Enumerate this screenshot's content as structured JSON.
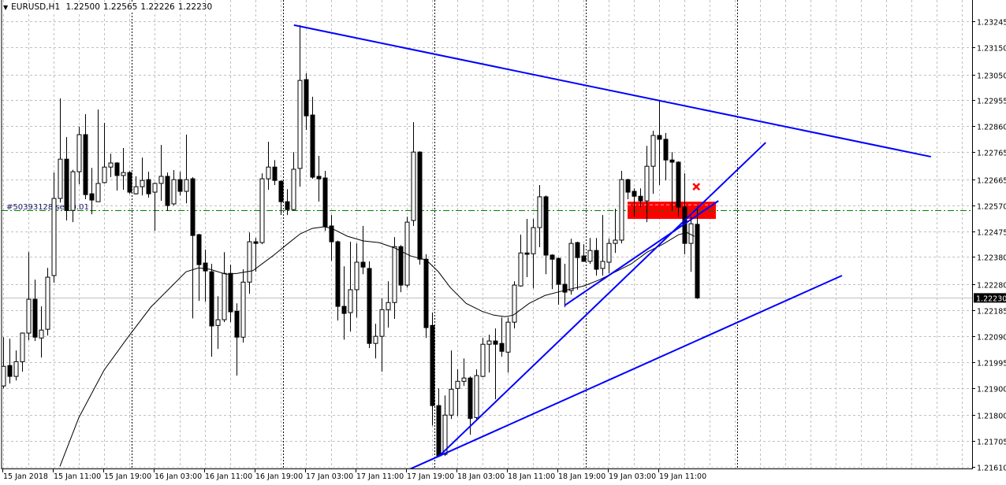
{
  "header": {
    "menu_icon": "triangle-down-icon",
    "symbol_timeframe": "EURUSD,H1",
    "open": "1.22500",
    "high": "1.22565",
    "low": "1.22226",
    "close": "1.22230"
  },
  "order_label": "#50393128 sell 0.01",
  "colors": {
    "background": "#ffffff",
    "grid": "#c0c0c0",
    "candle_bull_fill": "#ffffff",
    "candle_bear_fill": "#000000",
    "candle_outline": "#000000",
    "trendline": "#0000ff",
    "order_line": "#008000",
    "zone": "#ff0000",
    "bid_line": "#c0c0c0",
    "moving_average": "#000000"
  },
  "chart_data": {
    "type": "candlestick",
    "symbol": "EURUSD",
    "timeframe": "H1",
    "grid": true,
    "x_tick_labels": [
      "15 Jan 2018",
      "15 Jan 11:00",
      "15 Jan 19:00",
      "16 Jan 03:00",
      "16 Jan 11:00",
      "16 Jan 19:00",
      "17 Jan 03:00",
      "17 Jan 11:00",
      "17 Jan 19:00",
      "18 Jan 03:00",
      "18 Jan 11:00",
      "18 Jan 19:00",
      "19 Jan 03:00",
      "19 Jan 11:00"
    ],
    "y_tick_labels": [
      "1.23245",
      "1.23150",
      "1.23050",
      "1.22955",
      "1.22860",
      "1.22765",
      "1.22665",
      "1.22570",
      "1.22475",
      "1.22380",
      "1.22280",
      "1.22185",
      "1.22090",
      "1.21995",
      "1.21900",
      "1.21800",
      "1.21705",
      "1.21610"
    ],
    "ylim": [
      1.2161,
      1.23245
    ],
    "current_price": "1.22230",
    "order_price": 1.22553,
    "candles_ohlc": [
      [
        1.21907,
        1.22086,
        1.21898,
        1.21979
      ],
      [
        1.21982,
        1.2208,
        1.21916,
        1.21942
      ],
      [
        1.21942,
        1.22037,
        1.21927,
        1.21996
      ],
      [
        1.21996,
        1.22103,
        1.21959,
        1.22101
      ],
      [
        1.22101,
        1.22398,
        1.22075,
        1.22225
      ],
      [
        1.22225,
        1.22297,
        1.22072,
        1.22086
      ],
      [
        1.22083,
        1.22199,
        1.22011,
        1.22112
      ],
      [
        1.22115,
        1.2234,
        1.22092,
        1.22306
      ],
      [
        1.22312,
        1.2269,
        1.22286,
        1.22595
      ],
      [
        1.22595,
        1.22962,
        1.2258,
        1.22739
      ],
      [
        1.22739,
        1.2282,
        1.22514,
        1.22551
      ],
      [
        1.22551,
        1.227,
        1.22508,
        1.22693
      ],
      [
        1.22693,
        1.22858,
        1.22647,
        1.22829
      ],
      [
        1.22829,
        1.22904,
        1.22592,
        1.22609
      ],
      [
        1.22612,
        1.22707,
        1.22537,
        1.22589
      ],
      [
        1.22583,
        1.22921,
        1.22583,
        1.2265
      ],
      [
        1.22653,
        1.22872,
        1.2265,
        1.2271
      ],
      [
        1.2271,
        1.22759,
        1.22673,
        1.22725
      ],
      [
        1.22725,
        1.22728,
        1.22624,
        1.22679
      ],
      [
        1.22679,
        1.2278,
        1.22627,
        1.2269
      ],
      [
        1.2269,
        1.22695,
        1.22612,
        1.22618
      ],
      [
        1.22612,
        1.22676,
        1.22609,
        1.22638
      ],
      [
        1.22638,
        1.22745,
        1.22606,
        1.22661
      ],
      [
        1.22664,
        1.22693,
        1.22598,
        1.22612
      ],
      [
        1.22618,
        1.22653,
        1.22476,
        1.2265
      ],
      [
        1.2265,
        1.22791,
        1.22586,
        1.22676
      ],
      [
        1.22676,
        1.2269,
        1.22549,
        1.22569
      ],
      [
        1.22575,
        1.22699,
        1.22569,
        1.22664
      ],
      [
        1.22664,
        1.22693,
        1.22606,
        1.22621
      ],
      [
        1.22621,
        1.22829,
        1.22577,
        1.22664
      ],
      [
        1.22667,
        1.22673,
        1.22155,
        1.22459
      ],
      [
        1.22462,
        1.22465,
        1.22219,
        1.22352
      ],
      [
        1.22358,
        1.22407,
        1.22216,
        1.22329
      ],
      [
        1.22326,
        1.22355,
        1.22014,
        1.22127
      ],
      [
        1.22129,
        1.22236,
        1.22043,
        1.2215
      ],
      [
        1.2215,
        1.22398,
        1.22141,
        1.2232
      ],
      [
        1.2232,
        1.22352,
        1.22141,
        1.22179
      ],
      [
        1.22181,
        1.2221,
        1.21945,
        1.22086
      ],
      [
        1.22086,
        1.22335,
        1.22066,
        1.22288
      ],
      [
        1.22288,
        1.2247,
        1.22245,
        1.22436
      ],
      [
        1.22436,
        1.2245,
        1.22326,
        1.2243
      ],
      [
        1.22433,
        1.22687,
        1.22427,
        1.22667
      ],
      [
        1.22667,
        1.22803,
        1.22627,
        1.2271
      ],
      [
        1.2271,
        1.22736,
        1.22644,
        1.22661
      ],
      [
        1.22658,
        1.22661,
        1.22534,
        1.22583
      ],
      [
        1.22583,
        1.22629,
        1.22534,
        1.22554
      ],
      [
        1.22554,
        1.22765,
        1.22551,
        1.22702
      ],
      [
        1.22705,
        1.23231,
        1.22638,
        1.23028
      ],
      [
        1.23031,
        1.23054,
        1.22846,
        1.22898
      ],
      [
        1.22901,
        1.22968,
        1.22667,
        1.22673
      ],
      [
        1.22676,
        1.22751,
        1.22583,
        1.22667
      ],
      [
        1.2267,
        1.22696,
        1.22476,
        1.22491
      ],
      [
        1.22494,
        1.22534,
        1.22366,
        1.22436
      ],
      [
        1.22436,
        1.2244,
        1.22147,
        1.22199
      ],
      [
        1.22199,
        1.22346,
        1.22077,
        1.22173
      ],
      [
        1.22176,
        1.22436,
        1.22106,
        1.2226
      ],
      [
        1.2226,
        1.2243,
        1.22158,
        1.22361
      ],
      [
        1.22361,
        1.22494,
        1.22317,
        1.22343
      ],
      [
        1.22338,
        1.22364,
        1.22046,
        1.22063
      ],
      [
        1.22063,
        1.22135,
        1.22008,
        1.22089
      ],
      [
        1.22089,
        1.22228,
        1.21959,
        1.22187
      ],
      [
        1.22187,
        1.22291,
        1.22121,
        1.22213
      ],
      [
        1.22213,
        1.22453,
        1.22153,
        1.22418
      ],
      [
        1.22418,
        1.22424,
        1.22251,
        1.22277
      ],
      [
        1.22277,
        1.22528,
        1.22268,
        1.22508
      ],
      [
        1.22514,
        1.22875,
        1.22494,
        1.22765
      ],
      [
        1.22765,
        1.22768,
        1.22352,
        1.22372
      ],
      [
        1.22372,
        1.2239,
        1.22083,
        1.22121
      ],
      [
        1.22129,
        1.22176,
        1.21762,
        1.21835
      ],
      [
        1.21835,
        1.21898,
        1.21647,
        1.2165
      ],
      [
        1.21656,
        1.21872,
        1.2165,
        1.218
      ],
      [
        1.218,
        1.22037,
        1.21786,
        1.21895
      ],
      [
        1.21898,
        1.21968,
        1.21797,
        1.21924
      ],
      [
        1.21924,
        1.22008,
        1.21907,
        1.21936
      ],
      [
        1.21936,
        1.21942,
        1.21728,
        1.21788
      ],
      [
        1.21791,
        1.21968,
        1.21783,
        1.21945
      ],
      [
        1.21942,
        1.22083,
        1.21939,
        1.2206
      ],
      [
        1.2206,
        1.22095,
        1.21956,
        1.22072
      ],
      [
        1.22072,
        1.22118,
        1.21858,
        1.2206
      ],
      [
        1.22063,
        1.22158,
        1.22014,
        1.22034
      ],
      [
        1.22031,
        1.22158,
        1.21956,
        1.22141
      ],
      [
        1.22141,
        1.22291,
        1.22118,
        1.22277
      ],
      [
        1.22274,
        1.22462,
        1.22271,
        1.22395
      ],
      [
        1.22395,
        1.2252,
        1.22306,
        1.2239
      ],
      [
        1.22392,
        1.2252,
        1.22265,
        1.22488
      ],
      [
        1.22488,
        1.22644,
        1.22416,
        1.22601
      ],
      [
        1.22601,
        1.22606,
        1.22317,
        1.22387
      ],
      [
        1.22387,
        1.2239,
        1.22262,
        1.22372
      ],
      [
        1.22375,
        1.22378,
        1.22205,
        1.2228
      ],
      [
        1.2228,
        1.22355,
        1.22196,
        1.22251
      ],
      [
        1.22257,
        1.22447,
        1.22242,
        1.2243
      ],
      [
        1.22433,
        1.22436,
        1.2226,
        1.22378
      ],
      [
        1.22384,
        1.22427,
        1.22364,
        1.22364
      ],
      [
        1.22364,
        1.2245,
        1.22355,
        1.22404
      ],
      [
        1.22404,
        1.2245,
        1.22312,
        1.22335
      ],
      [
        1.22338,
        1.22534,
        1.22312,
        1.22364
      ],
      [
        1.22361,
        1.22447,
        1.2232,
        1.2243
      ],
      [
        1.2243,
        1.22557,
        1.22395,
        1.22442
      ],
      [
        1.22442,
        1.22696,
        1.2243,
        1.22664
      ],
      [
        1.22664,
        1.22667,
        1.22592,
        1.22618
      ],
      [
        1.22621,
        1.22632,
        1.22528,
        1.22603
      ],
      [
        1.22603,
        1.22632,
        1.22563,
        1.22586
      ],
      [
        1.22586,
        1.22788,
        1.22508,
        1.22713
      ],
      [
        1.22713,
        1.22843,
        1.22612,
        1.22826
      ],
      [
        1.22826,
        1.22956,
        1.22644,
        1.22812
      ],
      [
        1.22812,
        1.22835,
        1.22661,
        1.22736
      ],
      [
        1.22736,
        1.22765,
        1.22551,
        1.22728
      ],
      [
        1.22728,
        1.22731,
        1.22528,
        1.22563
      ],
      [
        1.22563,
        1.22687,
        1.2239,
        1.2243
      ],
      [
        1.2243,
        1.22528,
        1.22326,
        1.22502
      ],
      [
        1.225,
        1.22565,
        1.22226,
        1.2223
      ]
    ],
    "moving_average": [
      {
        "bar": 9,
        "value": 1.21612
      },
      {
        "bar": 12,
        "value": 1.21791
      },
      {
        "bar": 16,
        "value": 1.21965
      },
      {
        "bar": 19.6,
        "value": 1.2208
      },
      {
        "bar": 23.4,
        "value": 1.22196
      },
      {
        "bar": 26.5,
        "value": 1.22268
      },
      {
        "bar": 29,
        "value": 1.22326
      },
      {
        "bar": 31,
        "value": 1.2234
      },
      {
        "bar": 32.8,
        "value": 1.22335
      },
      {
        "bar": 35.3,
        "value": 1.22317
      },
      {
        "bar": 37.1,
        "value": 1.2232
      },
      {
        "bar": 39.6,
        "value": 1.2233
      },
      {
        "bar": 42.8,
        "value": 1.22385
      },
      {
        "bar": 45.3,
        "value": 1.22432
      },
      {
        "bar": 47.1,
        "value": 1.22465
      },
      {
        "bar": 49,
        "value": 1.22485
      },
      {
        "bar": 50.9,
        "value": 1.22491
      },
      {
        "bar": 52.1,
        "value": 1.22485
      },
      {
        "bar": 54.6,
        "value": 1.22456
      },
      {
        "bar": 57.1,
        "value": 1.22439
      },
      {
        "bar": 59.6,
        "value": 1.22433
      },
      {
        "bar": 62.1,
        "value": 1.22413
      },
      {
        "bar": 64.6,
        "value": 1.22384
      },
      {
        "bar": 67.1,
        "value": 1.22369
      },
      {
        "bar": 69,
        "value": 1.22326
      },
      {
        "bar": 70.9,
        "value": 1.22268
      },
      {
        "bar": 73.4,
        "value": 1.2221
      },
      {
        "bar": 75.9,
        "value": 1.22181
      },
      {
        "bar": 77.75,
        "value": 1.22167
      },
      {
        "bar": 79.6,
        "value": 1.22161
      },
      {
        "bar": 80.9,
        "value": 1.22167
      },
      {
        "bar": 83.4,
        "value": 1.2221
      },
      {
        "bar": 85.9,
        "value": 1.22239
      },
      {
        "bar": 88.4,
        "value": 1.22254
      },
      {
        "bar": 92.1,
        "value": 1.22274
      },
      {
        "bar": 94.6,
        "value": 1.22297
      },
      {
        "bar": 97.1,
        "value": 1.22326
      },
      {
        "bar": 99.6,
        "value": 1.22355
      },
      {
        "bar": 102.1,
        "value": 1.22398
      },
      {
        "bar": 104.6,
        "value": 1.22427
      },
      {
        "bar": 107.1,
        "value": 1.22462
      },
      {
        "bar": 108.4,
        "value": 1.2247
      },
      {
        "bar": 109.6,
        "value": 1.22456
      }
    ],
    "trendlines": [
      {
        "from": {
          "bar": 46.1,
          "price": 1.23231
        },
        "to": {
          "bar": 147.1,
          "price": 1.22748
        }
      },
      {
        "from": {
          "bar": 69,
          "price": 1.21647
        },
        "to": {
          "bar": 120.9,
          "price": 1.228
        }
      },
      {
        "from": {
          "bar": 64.6,
          "price": 1.21603
        },
        "to": {
          "bar": 133,
          "price": 1.22312
        }
      },
      {
        "from": {
          "bar": 89,
          "price": 1.22202
        },
        "to": {
          "bar": 113.4,
          "price": 1.22586
        }
      }
    ],
    "zone": {
      "from_bar": 99,
      "to_bar": 113,
      "price_top": 1.22583,
      "price_bottom": 1.2252
    },
    "close_marker": {
      "bar": 109.9,
      "price": 1.22638,
      "icon": "red-x-icon"
    }
  }
}
